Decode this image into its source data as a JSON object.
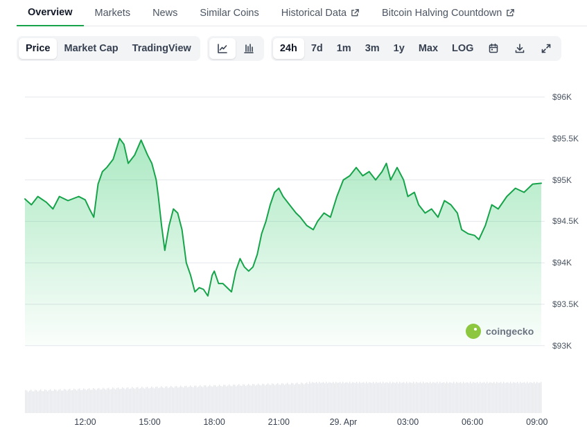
{
  "tabs": [
    {
      "label": "Overview",
      "active": true,
      "external": false
    },
    {
      "label": "Markets",
      "active": false,
      "external": false
    },
    {
      "label": "News",
      "active": false,
      "external": false
    },
    {
      "label": "Similar Coins",
      "active": false,
      "external": false
    },
    {
      "label": "Historical Data",
      "active": false,
      "external": true
    },
    {
      "label": "Bitcoin Halving Countdown",
      "active": false,
      "external": true
    }
  ],
  "toolbar": {
    "metric_buttons": [
      "Price",
      "Market Cap",
      "TradingView"
    ],
    "selected_metric": "Price",
    "chart_type_icons": [
      "line-chart-icon",
      "candlestick-chart-icon"
    ],
    "range_buttons": [
      "24h",
      "7d",
      "1m",
      "3m",
      "1y",
      "Max",
      "LOG"
    ],
    "selected_range": "24h",
    "action_icons": [
      "calendar-icon",
      "download-icon",
      "fullscreen-icon"
    ]
  },
  "watermark": "coingecko",
  "colors": {
    "line": "#16a34a",
    "fill": "#22c55e",
    "volume": "#e5e7eb",
    "active_tab": "#16a34a"
  },
  "chart_data": {
    "type": "area",
    "title": "",
    "xlabel": "",
    "ylabel": "",
    "y_ticks": [
      "$96K",
      "$95.5K",
      "$95K",
      "$94.5K",
      "$94K",
      "$93.5K",
      "$93K"
    ],
    "x_ticks": [
      "12:00",
      "15:00",
      "18:00",
      "21:00",
      "29. Apr",
      "03:00",
      "06:00",
      "09:00"
    ],
    "x_tick_hours": [
      12,
      15,
      18,
      21,
      24,
      27,
      30,
      33
    ],
    "ylim": [
      93000,
      96000
    ],
    "xlim": [
      9.2,
      33.2
    ],
    "grid": true,
    "legend": "none",
    "series": [
      {
        "values": [
          [
            9.2,
            94770
          ],
          [
            9.5,
            94700
          ],
          [
            9.8,
            94800
          ],
          [
            10.2,
            94730
          ],
          [
            10.5,
            94650
          ],
          [
            10.8,
            94800
          ],
          [
            11.2,
            94750
          ],
          [
            11.7,
            94800
          ],
          [
            12.0,
            94760
          ],
          [
            12.2,
            94650
          ],
          [
            12.4,
            94550
          ],
          [
            12.6,
            94950
          ],
          [
            12.8,
            95100
          ],
          [
            13.0,
            95150
          ],
          [
            13.3,
            95250
          ],
          [
            13.6,
            95500
          ],
          [
            13.8,
            95430
          ],
          [
            14.0,
            95200
          ],
          [
            14.3,
            95300
          ],
          [
            14.6,
            95480
          ],
          [
            14.9,
            95300
          ],
          [
            15.1,
            95200
          ],
          [
            15.3,
            95000
          ],
          [
            15.4,
            94800
          ],
          [
            15.55,
            94450
          ],
          [
            15.7,
            94150
          ],
          [
            15.9,
            94450
          ],
          [
            16.1,
            94650
          ],
          [
            16.3,
            94600
          ],
          [
            16.5,
            94400
          ],
          [
            16.7,
            94000
          ],
          [
            16.9,
            93850
          ],
          [
            17.1,
            93650
          ],
          [
            17.3,
            93700
          ],
          [
            17.5,
            93680
          ],
          [
            17.7,
            93600
          ],
          [
            17.9,
            93850
          ],
          [
            18.0,
            93900
          ],
          [
            18.2,
            93750
          ],
          [
            18.4,
            93750
          ],
          [
            18.6,
            93700
          ],
          [
            18.8,
            93650
          ],
          [
            19.0,
            93900
          ],
          [
            19.2,
            94050
          ],
          [
            19.4,
            93950
          ],
          [
            19.6,
            93900
          ],
          [
            19.8,
            93950
          ],
          [
            20.0,
            94100
          ],
          [
            20.2,
            94350
          ],
          [
            20.4,
            94500
          ],
          [
            20.6,
            94700
          ],
          [
            20.8,
            94850
          ],
          [
            21.0,
            94900
          ],
          [
            21.2,
            94800
          ],
          [
            21.5,
            94700
          ],
          [
            21.8,
            94600
          ],
          [
            22.0,
            94550
          ],
          [
            22.3,
            94450
          ],
          [
            22.6,
            94400
          ],
          [
            22.8,
            94500
          ],
          [
            23.1,
            94600
          ],
          [
            23.4,
            94550
          ],
          [
            23.7,
            94800
          ],
          [
            24.0,
            95000
          ],
          [
            24.3,
            95050
          ],
          [
            24.6,
            95150
          ],
          [
            24.9,
            95050
          ],
          [
            25.2,
            95100
          ],
          [
            25.5,
            95000
          ],
          [
            25.8,
            95100
          ],
          [
            26.0,
            95200
          ],
          [
            26.2,
            95000
          ],
          [
            26.5,
            95150
          ],
          [
            26.8,
            95000
          ],
          [
            27.0,
            94800
          ],
          [
            27.3,
            94850
          ],
          [
            27.5,
            94700
          ],
          [
            27.8,
            94600
          ],
          [
            28.1,
            94650
          ],
          [
            28.4,
            94550
          ],
          [
            28.7,
            94750
          ],
          [
            29.0,
            94700
          ],
          [
            29.3,
            94600
          ],
          [
            29.5,
            94400
          ],
          [
            29.8,
            94350
          ],
          [
            30.1,
            94330
          ],
          [
            30.3,
            94280
          ],
          [
            30.6,
            94450
          ],
          [
            30.9,
            94700
          ],
          [
            31.2,
            94650
          ],
          [
            31.6,
            94800
          ],
          [
            32.0,
            94900
          ],
          [
            32.4,
            94850
          ],
          [
            32.8,
            94950
          ],
          [
            33.2,
            94960
          ]
        ]
      }
    ]
  }
}
